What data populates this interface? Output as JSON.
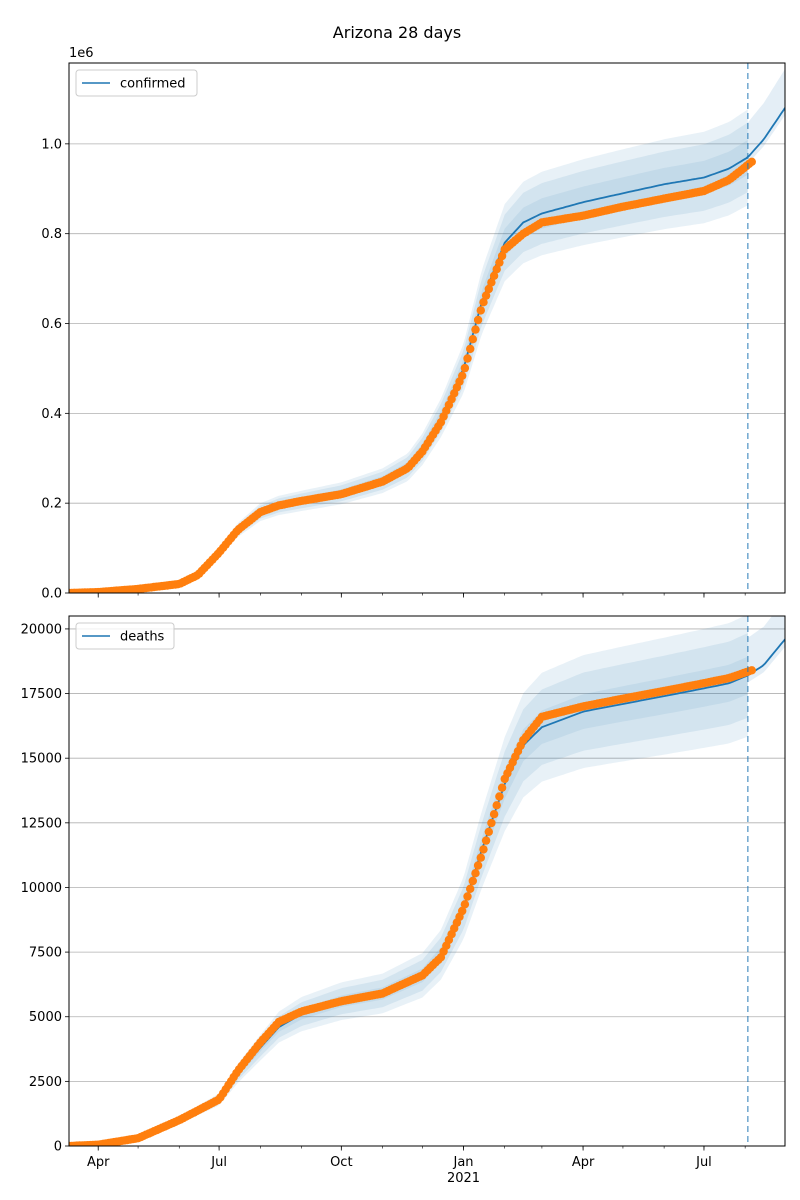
{
  "figure": {
    "title": "Arizona 28 days"
  },
  "colors": {
    "model_line": "#1f77b4",
    "observed": "#ff7f0e",
    "band": "#1f77b4",
    "grid": "#b0b0b0",
    "forecast_line": "#1f77b4"
  },
  "x_axis": {
    "start": "2020-03-10",
    "end": "2021-08-31",
    "ticks": [
      {
        "date": "2020-04-01",
        "label": "Apr"
      },
      {
        "date": "2020-07-01",
        "label": "Jul"
      },
      {
        "date": "2020-10-01",
        "label": "Oct"
      },
      {
        "date": "2021-01-01",
        "label": "Jan"
      },
      {
        "date": "2021-04-01",
        "label": "Apr"
      },
      {
        "date": "2021-07-01",
        "label": "Jul"
      }
    ],
    "year_label": {
      "date": "2021-01-01",
      "label": "2021"
    },
    "forecast_start": "2021-08-03"
  },
  "chart_data": [
    {
      "type": "line",
      "name": "confirmed",
      "legend": {
        "label": "confirmed",
        "position": "upper-left"
      },
      "y_offset_label": "1e6",
      "ylim": [
        0,
        1180000
      ],
      "y_ticks": [
        {
          "value": 0,
          "label": "0.0"
        },
        {
          "value": 200000,
          "label": "0.2"
        },
        {
          "value": 400000,
          "label": "0.4"
        },
        {
          "value": 600000,
          "label": "0.6"
        },
        {
          "value": 800000,
          "label": "0.8"
        },
        {
          "value": 1000000,
          "label": "1.0"
        }
      ],
      "grid": "horizontal",
      "band_widths": [
        0.04,
        0.08,
        0.11
      ],
      "model_x": [
        "2020-03-10",
        "2020-04-01",
        "2020-05-01",
        "2020-06-01",
        "2020-06-15",
        "2020-07-01",
        "2020-07-15",
        "2020-08-01",
        "2020-08-15",
        "2020-09-01",
        "2020-10-01",
        "2020-11-01",
        "2020-11-20",
        "2020-12-01",
        "2020-12-15",
        "2021-01-01",
        "2021-01-15",
        "2021-02-01",
        "2021-02-15",
        "2021-03-01",
        "2021-04-01",
        "2021-05-01",
        "2021-06-01",
        "2021-07-01",
        "2021-07-20",
        "2021-08-03",
        "2021-08-15",
        "2021-08-31"
      ],
      "model_y": [
        0,
        2000,
        9000,
        20000,
        40000,
        90000,
        140000,
        180000,
        195000,
        205000,
        222000,
        250000,
        280000,
        320000,
        390000,
        500000,
        650000,
        780000,
        825000,
        845000,
        870000,
        890000,
        910000,
        925000,
        945000,
        970000,
        1010000,
        1080000
      ],
      "observed_x": [
        "2020-03-10",
        "2020-04-01",
        "2020-05-01",
        "2020-06-01",
        "2020-06-15",
        "2020-07-01",
        "2020-07-15",
        "2020-08-01",
        "2020-08-15",
        "2020-09-01",
        "2020-10-01",
        "2020-11-01",
        "2020-11-20",
        "2020-12-01",
        "2020-12-15",
        "2021-01-01",
        "2021-01-15",
        "2021-02-01",
        "2021-02-15",
        "2021-03-01",
        "2021-04-01",
        "2021-05-01",
        "2021-06-01",
        "2021-07-01",
        "2021-07-20",
        "2021-08-06"
      ],
      "observed_y": [
        0,
        2000,
        9000,
        20000,
        40000,
        90000,
        140000,
        180000,
        195000,
        205000,
        220000,
        248000,
        278000,
        315000,
        380000,
        490000,
        640000,
        765000,
        800000,
        825000,
        840000,
        860000,
        878000,
        895000,
        920000,
        960000
      ]
    },
    {
      "type": "line",
      "name": "deaths",
      "legend": {
        "label": "deaths",
        "position": "upper-left"
      },
      "ylim": [
        0,
        20500
      ],
      "y_ticks": [
        {
          "value": 0,
          "label": "0"
        },
        {
          "value": 2500,
          "label": "2500"
        },
        {
          "value": 5000,
          "label": "5000"
        },
        {
          "value": 7500,
          "label": "7500"
        },
        {
          "value": 10000,
          "label": "10000"
        },
        {
          "value": 12500,
          "label": "12500"
        },
        {
          "value": 15000,
          "label": "15000"
        },
        {
          "value": 17500,
          "label": "17500"
        },
        {
          "value": 20000,
          "label": "20000"
        }
      ],
      "grid": "horizontal",
      "band_widths": [
        0.04,
        0.09,
        0.13
      ],
      "model_x": [
        "2020-03-10",
        "2020-04-01",
        "2020-05-01",
        "2020-06-01",
        "2020-07-01",
        "2020-07-15",
        "2020-08-01",
        "2020-08-15",
        "2020-09-01",
        "2020-10-01",
        "2020-11-01",
        "2020-12-01",
        "2020-12-15",
        "2021-01-01",
        "2021-01-15",
        "2021-02-01",
        "2021-02-15",
        "2021-03-01",
        "2021-04-01",
        "2021-05-01",
        "2021-06-01",
        "2021-07-01",
        "2021-07-20",
        "2021-08-03",
        "2021-08-15",
        "2021-08-31"
      ],
      "model_y": [
        0,
        50,
        300,
        1000,
        1800,
        2800,
        3800,
        4600,
        5100,
        5600,
        5900,
        6600,
        7400,
        9200,
        11500,
        14000,
        15500,
        16200,
        16800,
        17100,
        17400,
        17700,
        17900,
        18200,
        18600,
        19600
      ],
      "observed_x": [
        "2020-03-10",
        "2020-04-01",
        "2020-05-01",
        "2020-06-01",
        "2020-07-01",
        "2020-07-15",
        "2020-08-01",
        "2020-08-15",
        "2020-09-01",
        "2020-10-01",
        "2020-11-01",
        "2020-12-01",
        "2020-12-15",
        "2021-01-01",
        "2021-01-15",
        "2021-02-01",
        "2021-02-15",
        "2021-03-01",
        "2021-04-01",
        "2021-05-01",
        "2021-06-01",
        "2021-07-01",
        "2021-07-20",
        "2021-08-06"
      ],
      "observed_y": [
        0,
        50,
        300,
        1000,
        1800,
        2900,
        4000,
        4800,
        5200,
        5600,
        5900,
        6600,
        7300,
        9200,
        11300,
        14200,
        15700,
        16600,
        17000,
        17300,
        17600,
        17900,
        18100,
        18400
      ]
    }
  ]
}
